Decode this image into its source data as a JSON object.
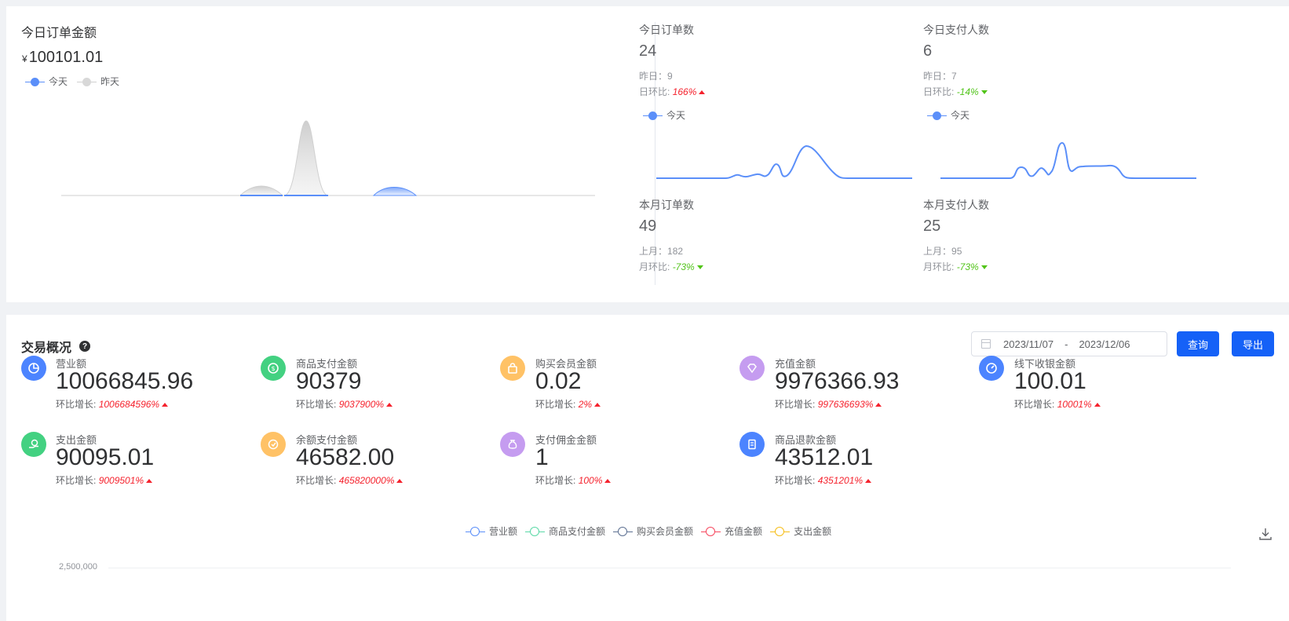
{
  "top_left": {
    "title": "今日订单金额",
    "currency_symbol": "¥",
    "amount": "100101.01",
    "legend": [
      {
        "label": "今天",
        "color": "#5b8ff9"
      },
      {
        "label": "昨天",
        "color": "#d8d8d8"
      }
    ]
  },
  "top_stats": [
    {
      "title": "今日订单数",
      "value": "24",
      "prev_label": "昨日：",
      "prev_value": "9",
      "ratio_label": "日环比:",
      "ratio_value": "166%",
      "trend": "up",
      "legend": "今天"
    },
    {
      "title": "今日支付人数",
      "value": "6",
      "prev_label": "昨日：",
      "prev_value": "7",
      "ratio_label": "日环比:",
      "ratio_value": "-14%",
      "trend": "down",
      "legend": "今天"
    },
    {
      "title": "本月订单数",
      "value": "49",
      "prev_label": "上月：",
      "prev_value": "182",
      "ratio_label": "月环比:",
      "ratio_value": "-73%",
      "trend": "down"
    },
    {
      "title": "本月支付人数",
      "value": "25",
      "prev_label": "上月：",
      "prev_value": "95",
      "ratio_label": "月环比:",
      "ratio_value": "-73%",
      "trend": "down"
    }
  ],
  "overview": {
    "title": "交易概况",
    "date_start": "2023/11/07",
    "date_sep": "-",
    "date_end": "2023/12/06",
    "query_label": "查询",
    "export_label": "导出",
    "growth_label": "环比增长:",
    "metrics": [
      {
        "label": "营业额",
        "value": "10066845.96",
        "growth": "1006684596%",
        "icon": "pie-chart-icon",
        "color": "#4c84ff"
      },
      {
        "label": "商品支付金额",
        "value": "90379",
        "growth": "9037900%",
        "icon": "coin-icon",
        "color": "#43d181"
      },
      {
        "label": "购买会员金额",
        "value": "0.02",
        "growth": "2%",
        "icon": "bag-icon",
        "color": "#ffc266"
      },
      {
        "label": "充值金额",
        "value": "9976366.93",
        "growth": "997636693%",
        "icon": "diamond-icon",
        "color": "#c59cf0"
      },
      {
        "label": "线下收银金额",
        "value": "100.01",
        "growth": "10001%",
        "icon": "gauge-icon",
        "color": "#4c84ff"
      },
      {
        "label": "支出金额",
        "value": "90095.01",
        "growth": "9009501%",
        "icon": "hand-coin-icon",
        "color": "#43d181"
      },
      {
        "label": "余额支付金额",
        "value": "46582.00",
        "growth": "465820000%",
        "icon": "wallet-icon",
        "color": "#ffc266"
      },
      {
        "label": "支付佣金金额",
        "value": "1",
        "growth": "100%",
        "icon": "money-bag-icon",
        "color": "#c59cf0"
      },
      {
        "label": "商品退款金额",
        "value": "43512.01",
        "growth": "4351201%",
        "icon": "receipt-icon",
        "color": "#4c84ff"
      }
    ],
    "chart_legend": [
      {
        "label": "营业额",
        "color": "#5b8ff9"
      },
      {
        "label": "商品支付金额",
        "color": "#5ad8a6"
      },
      {
        "label": "购买会员金额",
        "color": "#5d7092"
      },
      {
        "label": "充值金额",
        "color": "#f6465d"
      },
      {
        "label": "支出金额",
        "color": "#f6bd16"
      }
    ],
    "y_axis_top_label": "2,500,000",
    "download_icon": "download-icon"
  }
}
